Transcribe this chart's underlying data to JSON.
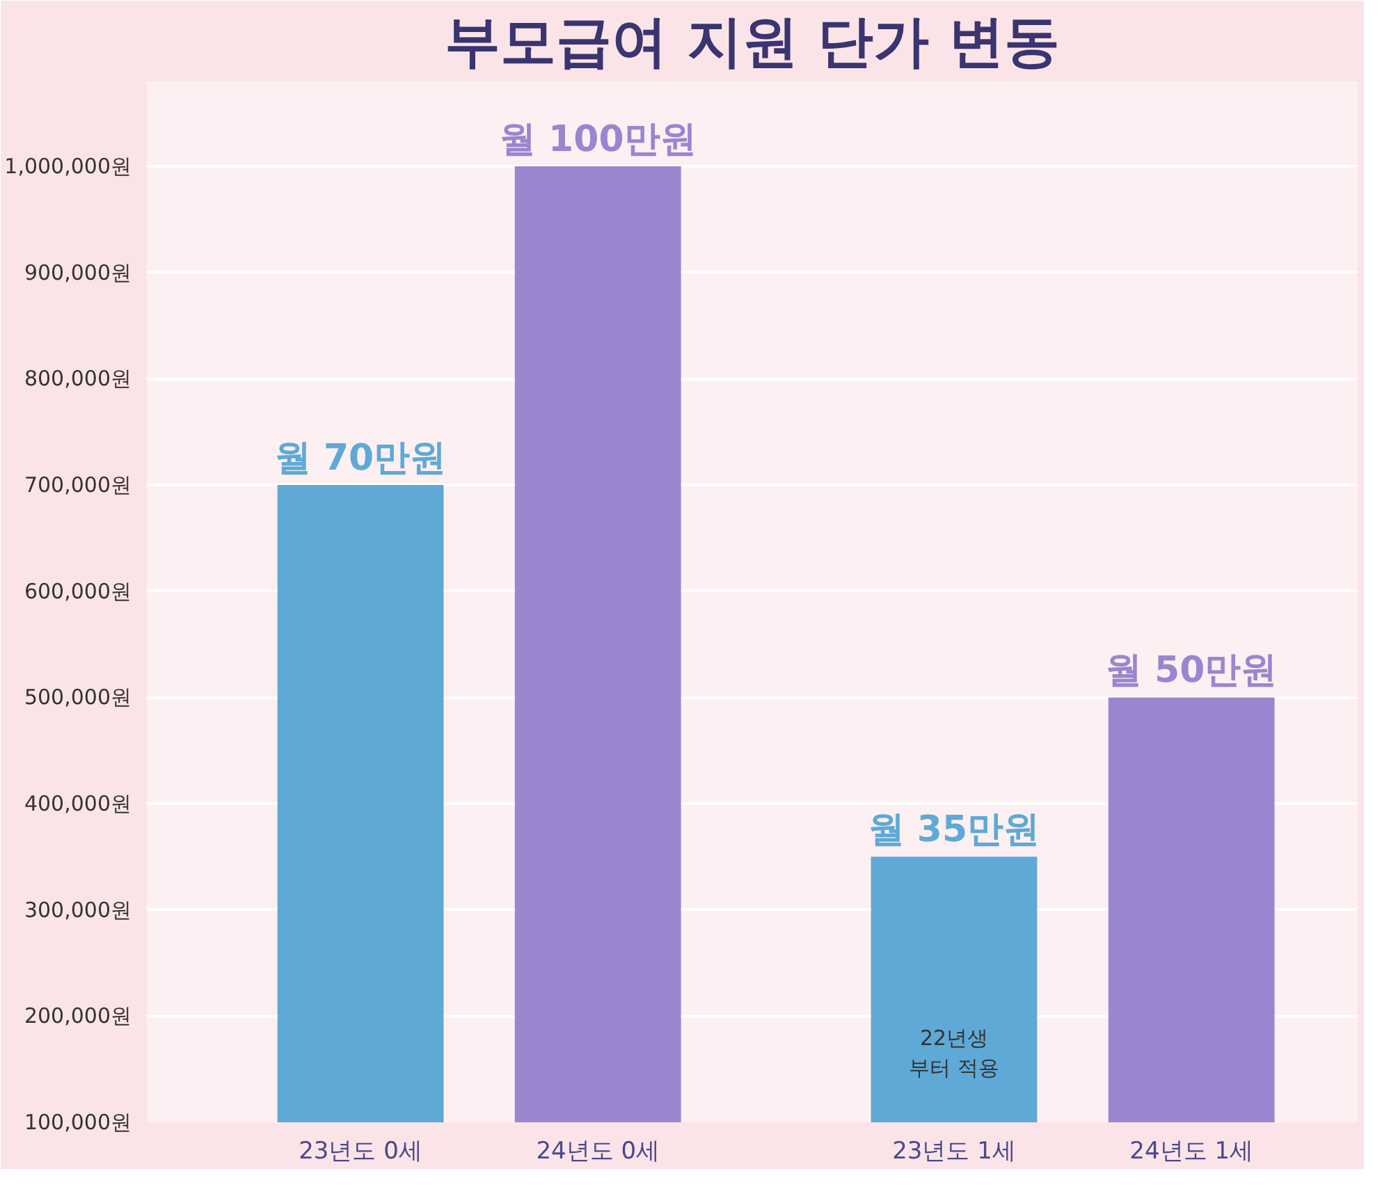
{
  "chart_data": {
    "type": "bar",
    "title": "부모급여 지원 단가 변동",
    "categories": [
      "23년도 0세",
      "24년도 0세",
      "23년도 1세",
      "24년도 1세"
    ],
    "values": [
      700000,
      1000000,
      350000,
      500000
    ],
    "colors": [
      "#5fa9d6",
      "#9a86cf",
      "#5fa9d6",
      "#9a86cf"
    ],
    "value_labels": [
      "월 70만원",
      "월 100만원",
      "월 35만원",
      "월 50만원"
    ],
    "annotations": [
      "22년생\n부터 적용"
    ],
    "ylim": [
      100000,
      1080000
    ],
    "yticks": [
      {
        "value": 100000,
        "label": "100,000원"
      },
      {
        "value": 200000,
        "label": "200,000원"
      },
      {
        "value": 300000,
        "label": "300,000원"
      },
      {
        "value": 400000,
        "label": "400,000원"
      },
      {
        "value": 500000,
        "label": "500,000원"
      },
      {
        "value": 600000,
        "label": "600,000원"
      },
      {
        "value": 700000,
        "label": "700,000원"
      },
      {
        "value": 800000,
        "label": "800,000원"
      },
      {
        "value": 900000,
        "label": "900,000원"
      },
      {
        "value": 1000000,
        "label": "1,000,000원"
      }
    ],
    "grid": "y"
  }
}
